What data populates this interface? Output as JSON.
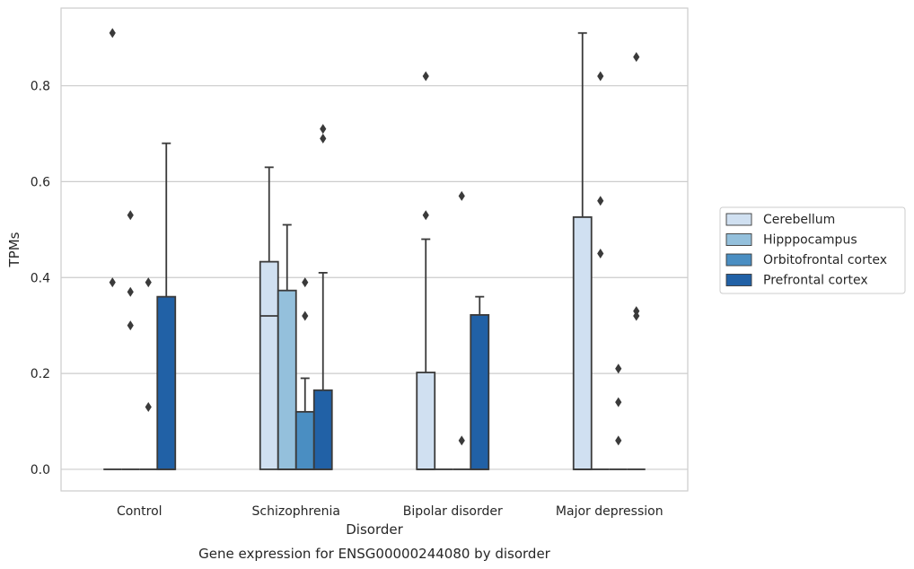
{
  "chart_data": {
    "type": "box",
    "xlabel": "Disorder",
    "ylabel": "TPMs",
    "caption": "Gene expression for ENSG00000244080 by disorder",
    "categories": [
      "Control",
      "Schizophrenia",
      "Bipolar disorder",
      "Major depression"
    ],
    "yticks": [
      "0.0",
      "0.2",
      "0.4",
      "0.6",
      "0.8"
    ],
    "ylim": [
      -0.045,
      0.962
    ],
    "grid": true,
    "legend_position": "right",
    "series": [
      {
        "name": "Cerebellum",
        "color": "#d0e0f1",
        "boxes": [
          {
            "q1": 0,
            "median": 0,
            "q3": 0,
            "whisker_low": 0,
            "whisker_high": 0,
            "outliers": [
              0.91,
              0.39
            ]
          },
          {
            "q1": 0,
            "median": 0.32,
            "q3": 0.433,
            "whisker_low": 0,
            "whisker_high": 0.63,
            "outliers": []
          },
          {
            "q1": 0,
            "median": 0,
            "q3": 0.202,
            "whisker_low": 0,
            "whisker_high": 0.48,
            "outliers": [
              0.82,
              0.53
            ]
          },
          {
            "q1": 0,
            "median": 0,
            "q3": 0.526,
            "whisker_low": 0,
            "whisker_high": 0.91,
            "outliers": []
          }
        ]
      },
      {
        "name": "Hipppocampus",
        "color": "#94c0dc",
        "boxes": [
          {
            "q1": 0,
            "median": 0,
            "q3": 0,
            "whisker_low": 0,
            "whisker_high": 0,
            "outliers": [
              0.53,
              0.37,
              0.3
            ]
          },
          {
            "q1": 0,
            "median": 0,
            "q3": 0.373,
            "whisker_low": 0,
            "whisker_high": 0.51,
            "outliers": []
          },
          {
            "q1": 0,
            "median": 0,
            "q3": 0,
            "whisker_low": 0,
            "whisker_high": 0,
            "outliers": []
          },
          {
            "q1": 0,
            "median": 0,
            "q3": 0,
            "whisker_low": 0,
            "whisker_high": 0,
            "outliers": [
              0.82,
              0.56,
              0.45
            ]
          }
        ]
      },
      {
        "name": "Orbitofrontal cortex",
        "color": "#4a8ec2",
        "boxes": [
          {
            "q1": 0,
            "median": 0,
            "q3": 0,
            "whisker_low": 0,
            "whisker_high": 0,
            "outliers": [
              0.39,
              0.13
            ]
          },
          {
            "q1": 0,
            "median": 0,
            "q3": 0.12,
            "whisker_low": 0,
            "whisker_high": 0.19,
            "outliers": [
              0.39,
              0.32
            ]
          },
          {
            "q1": 0,
            "median": 0,
            "q3": 0,
            "whisker_low": 0,
            "whisker_high": 0,
            "outliers": [
              0.57,
              0.06
            ]
          },
          {
            "q1": 0,
            "median": 0,
            "q3": 0,
            "whisker_low": 0,
            "whisker_high": 0,
            "outliers": [
              0.21,
              0.14,
              0.06
            ]
          }
        ]
      },
      {
        "name": "Prefrontal cortex",
        "color": "#2161a6",
        "boxes": [
          {
            "q1": 0,
            "median": 0,
            "q3": 0.36,
            "whisker_low": 0,
            "whisker_high": 0.68,
            "outliers": []
          },
          {
            "q1": 0,
            "median": 0,
            "q3": 0.165,
            "whisker_low": 0,
            "whisker_high": 0.41,
            "outliers": [
              0.71,
              0.69
            ]
          },
          {
            "q1": 0,
            "median": 0,
            "q3": 0.322,
            "whisker_low": 0,
            "whisker_high": 0.36,
            "outliers": []
          },
          {
            "q1": 0,
            "median": 0,
            "q3": 0,
            "whisker_low": 0,
            "whisker_high": 0,
            "outliers": [
              0.86,
              0.33,
              0.32
            ]
          }
        ]
      }
    ]
  }
}
